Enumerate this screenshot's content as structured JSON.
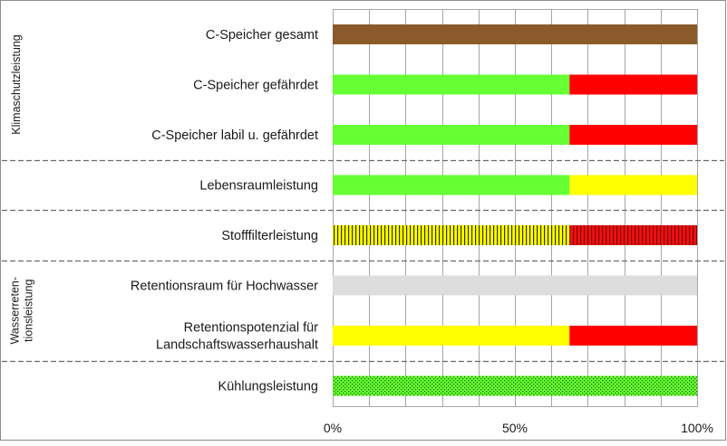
{
  "chart_data": {
    "type": "bar",
    "orientation": "horizontal",
    "stacked": true,
    "categories": [
      "C-Speicher gesamt",
      "C-Speicher gefährdet",
      "C-Speicher labil u. gefährdet",
      "Lebensraumleistung",
      "Stofffilterleistung",
      "Retentionsraum für Hochwasser",
      "Retentionspotenzial für Landschaftswasserhaushalt",
      "Kühlungsleistung"
    ],
    "category_lines": [
      [
        "C-Speicher gesamt"
      ],
      [
        "C-Speicher gefährdet"
      ],
      [
        "C-Speicher labil u. gefährdet"
      ],
      [
        "Lebensraumleistung"
      ],
      [
        "Stofffilterleistung"
      ],
      [
        "Retentionsraum für Hochwasser"
      ],
      [
        "Retentionspotenzial für",
        "Landschaftswasserhaushalt"
      ],
      [
        "Kühlungsleistung"
      ]
    ],
    "segments": [
      [
        {
          "value": 100,
          "color": "#8b5a2b",
          "pattern": "solid"
        }
      ],
      [
        {
          "value": 65,
          "color": "#66ff33",
          "pattern": "solid"
        },
        {
          "value": 35,
          "color": "#ff0000",
          "pattern": "solid"
        }
      ],
      [
        {
          "value": 65,
          "color": "#66ff33",
          "pattern": "solid"
        },
        {
          "value": 35,
          "color": "#ff0000",
          "pattern": "solid"
        }
      ],
      [
        {
          "value": 65,
          "color": "#66ff33",
          "pattern": "solid"
        },
        {
          "value": 35,
          "color": "#ffff00",
          "pattern": "solid"
        }
      ],
      [
        {
          "value": 65,
          "color": "#ffff00",
          "pattern": "vertical-hatch"
        },
        {
          "value": 35,
          "color": "#ee1111",
          "pattern": "vertical-hatch"
        }
      ],
      [
        {
          "value": 100,
          "color": "#dddddd",
          "pattern": "solid"
        }
      ],
      [
        {
          "value": 65,
          "color": "#ffff00",
          "pattern": "solid"
        },
        {
          "value": 35,
          "color": "#ff0000",
          "pattern": "solid"
        }
      ],
      [
        {
          "value": 100,
          "color": "#66ff33",
          "pattern": "dotted"
        }
      ]
    ],
    "xlim": [
      0,
      100
    ],
    "x_ticks": [
      0,
      50,
      100
    ],
    "x_tick_labels": [
      "0%",
      "50%",
      "100%"
    ],
    "grid": true,
    "groups": [
      {
        "label": "Klimaschutzleistung",
        "lines": [
          "Klimaschutzleistung"
        ],
        "rows": [
          0,
          2
        ]
      },
      {
        "label": "Wasserretentionsleistung",
        "lines": [
          "Wasserreten-",
          "tionsleistung"
        ],
        "rows": [
          5,
          6
        ]
      }
    ],
    "group_separators_after_rows": [
      2,
      3,
      4,
      6
    ]
  }
}
